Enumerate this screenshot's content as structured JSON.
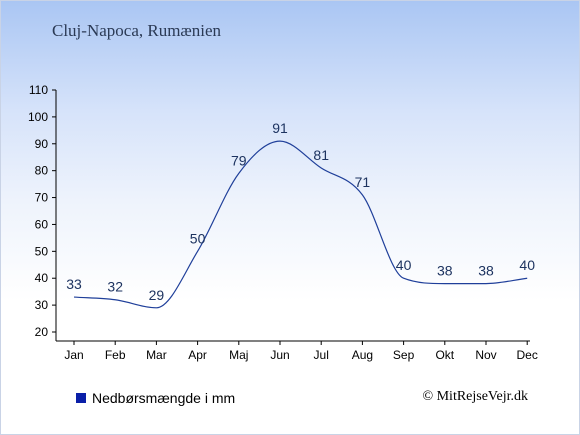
{
  "title": "Cluj-Napoca, Rumænien",
  "legend_label": "Nedbørsmængde i mm",
  "credit": "© MitRejseVejr.dk",
  "colors": {
    "series": "#1f3f9a",
    "legend_swatch": "#0a1fa8",
    "label": "#1d3360"
  },
  "chart_data": {
    "type": "line",
    "categories": [
      "Jan",
      "Feb",
      "Mar",
      "Apr",
      "Maj",
      "Jun",
      "Jul",
      "Aug",
      "Sep",
      "Okt",
      "Nov",
      "Dec"
    ],
    "series": [
      {
        "name": "Nedbørsmængde i mm",
        "values": [
          33,
          32,
          29,
          50,
          79,
          91,
          81,
          71,
          40,
          38,
          38,
          40
        ]
      }
    ],
    "yticks": [
      20,
      30,
      40,
      50,
      60,
      70,
      80,
      90,
      100,
      110
    ],
    "ylim": [
      20,
      110
    ],
    "grid": false,
    "legend_position": "bottom-left"
  }
}
